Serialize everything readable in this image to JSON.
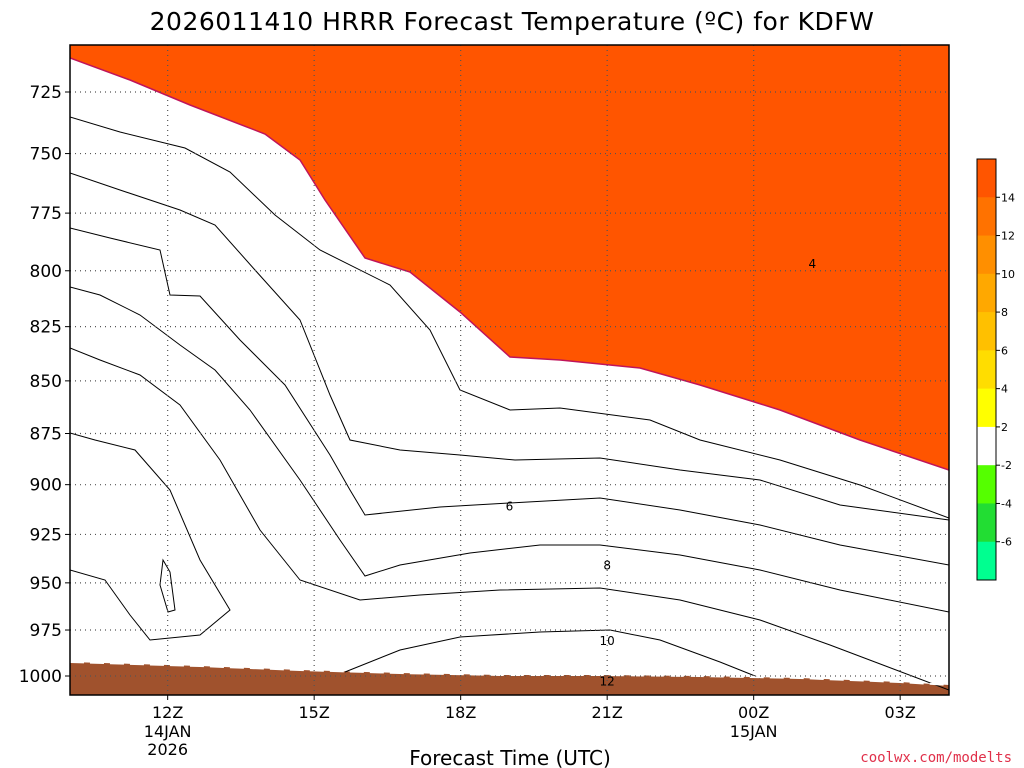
{
  "title": "2026011410 HRRR Forecast Temperature (ºC) for KDFW",
  "xlabel": "Forecast Time (UTC)",
  "credit": "coolwx.com/modelts",
  "chart_data": {
    "type": "contour",
    "title": "2026011410 HRRR Forecast Temperature (ºC) for KDFW",
    "xlabel": "Forecast Time (UTC)",
    "ylabel": "",
    "y_axis": {
      "reversed": true,
      "ylim": [
        1010,
        705
      ],
      "ticks": [
        1000,
        975,
        950,
        925,
        900,
        875,
        850,
        825,
        800,
        775,
        750,
        725
      ]
    },
    "x_axis": {
      "range_hours": [
        10,
        28
      ],
      "ticks": [
        {
          "hour": 12,
          "label": "12Z",
          "date": "14JAN",
          "year": "2026"
        },
        {
          "hour": 15,
          "label": "15Z",
          "date": "",
          "year": ""
        },
        {
          "hour": 18,
          "label": "18Z",
          "date": "",
          "year": ""
        },
        {
          "hour": 21,
          "label": "21Z",
          "date": "",
          "year": ""
        },
        {
          "hour": 24,
          "label": "00Z",
          "date": "15JAN",
          "year": ""
        },
        {
          "hour": 27,
          "label": "03Z",
          "date": "",
          "year": ""
        }
      ]
    },
    "grid": "dotted",
    "colorbar": {
      "labels": [
        14,
        12,
        10,
        8,
        6,
        4,
        2,
        -2,
        -4,
        -6
      ],
      "bins": [
        {
          "from": 14,
          "to": 16,
          "color": "#ff5500"
        },
        {
          "from": 12,
          "to": 14,
          "color": "#ff7200"
        },
        {
          "from": 10,
          "to": 12,
          "color": "#ff8f00"
        },
        {
          "from": 8,
          "to": 10,
          "color": "#ffa800"
        },
        {
          "from": 6,
          "to": 8,
          "color": "#ffc000"
        },
        {
          "from": 4,
          "to": 6,
          "color": "#ffdd00"
        },
        {
          "from": 2,
          "to": 4,
          "color": "#ffff00"
        },
        {
          "from": -2,
          "to": 2,
          "color": "#ffffff"
        },
        {
          "from": -4,
          "to": -2,
          "color": "#55ff00"
        },
        {
          "from": -6,
          "to": -4,
          "color": "#22dd33"
        },
        {
          "from": -8,
          "to": -6,
          "color": "#00ff90"
        }
      ]
    },
    "contour_labels": [
      {
        "value": "4",
        "hour": 25.2,
        "pressure": 797
      },
      {
        "value": "6",
        "hour": 19.0,
        "pressure": 911
      },
      {
        "value": "8",
        "hour": 21.0,
        "pressure": 941
      },
      {
        "value": "10",
        "hour": 21.0,
        "pressure": 981
      },
      {
        "value": "12",
        "hour": 21.0,
        "pressure": 1003
      }
    ],
    "ground_color": "#a0522d"
  }
}
